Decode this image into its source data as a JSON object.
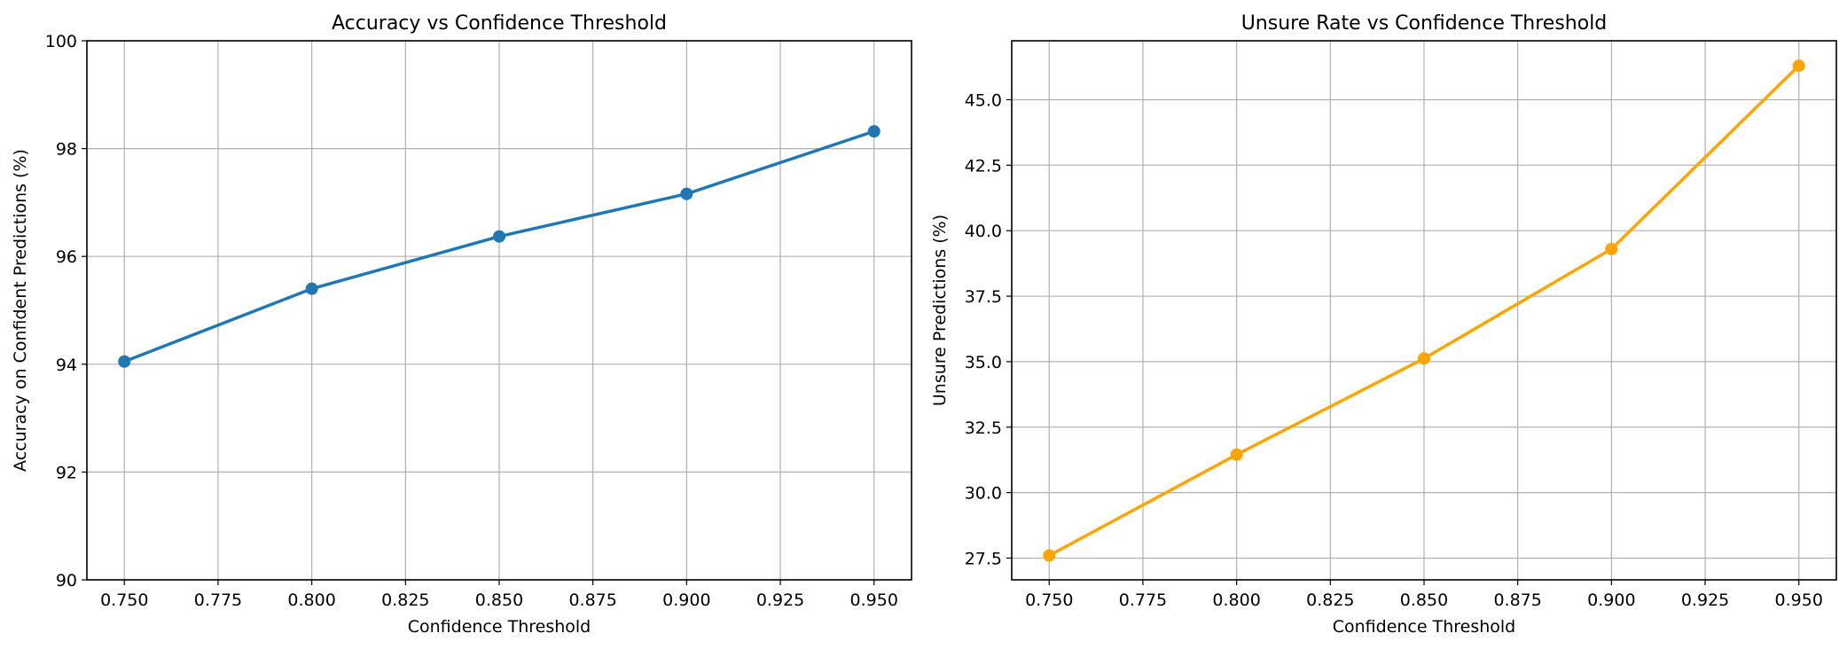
{
  "chart_data": [
    {
      "type": "line",
      "title": "Accuracy vs Confidence Threshold",
      "xlabel": "Confidence Threshold",
      "ylabel": "Accuracy on Confident Predictions (%)",
      "xlim": [
        0.74,
        0.96
      ],
      "ylim": [
        90,
        100
      ],
      "xticks": [
        "0.750",
        "0.775",
        "0.800",
        "0.825",
        "0.850",
        "0.875",
        "0.900",
        "0.925",
        "0.950"
      ],
      "yticks": [
        "90",
        "92",
        "94",
        "96",
        "98",
        "100"
      ],
      "grid": true,
      "color": "#1f77b4",
      "series": [
        {
          "x": [
            0.75,
            0.8,
            0.85,
            0.9,
            0.95
          ],
          "y": [
            94.05,
            95.4,
            96.37,
            97.16,
            98.32
          ]
        }
      ]
    },
    {
      "type": "line",
      "title": "Unsure Rate vs Confidence Threshold",
      "xlabel": "Confidence Threshold",
      "ylabel": "Unsure Predictions (%)",
      "xlim": [
        0.74,
        0.96
      ],
      "ylim": [
        26.67,
        47.25
      ],
      "xticks": [
        "0.750",
        "0.775",
        "0.800",
        "0.825",
        "0.850",
        "0.875",
        "0.900",
        "0.925",
        "0.950"
      ],
      "yticks": [
        "27.5",
        "30.0",
        "32.5",
        "35.0",
        "37.5",
        "40.0",
        "42.5",
        "45.0"
      ],
      "grid": true,
      "color": "#ffa500",
      "series": [
        {
          "x": [
            0.75,
            0.8,
            0.85,
            0.9,
            0.95
          ],
          "y": [
            27.6,
            31.45,
            35.12,
            39.3,
            46.3
          ]
        }
      ]
    }
  ]
}
